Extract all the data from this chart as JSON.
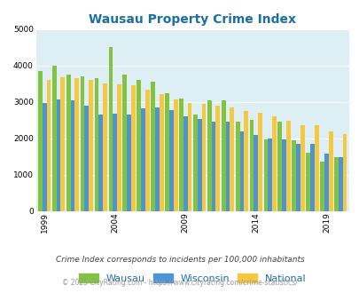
{
  "title": "Wausau Property Crime Index",
  "years": [
    1999,
    2000,
    2001,
    2002,
    2003,
    2004,
    2005,
    2006,
    2007,
    2008,
    2009,
    2010,
    2011,
    2012,
    2013,
    2014,
    2015,
    2016,
    2017,
    2018,
    2019,
    2020
  ],
  "wausau": [
    3850,
    4000,
    3750,
    3700,
    3650,
    4500,
    3750,
    3600,
    3550,
    3250,
    3100,
    2650,
    3050,
    3050,
    2450,
    2500,
    1980,
    2450,
    1950,
    1600,
    1360,
    1480
  ],
  "wisconsin": [
    2970,
    3080,
    3050,
    2900,
    2650,
    2670,
    2660,
    2830,
    2840,
    2780,
    2600,
    2520,
    2450,
    2450,
    2200,
    2090,
    1990,
    1960,
    1840,
    1840,
    1570,
    1490
  ],
  "national": [
    3610,
    3680,
    3660,
    3600,
    3520,
    3480,
    3450,
    3350,
    3220,
    3070,
    2970,
    2950,
    2900,
    2860,
    2750,
    2700,
    2610,
    2490,
    2360,
    2360,
    2200,
    2120
  ],
  "wausau_color": "#82c341",
  "wisconsin_color": "#4d94d5",
  "national_color": "#f5c842",
  "bg_color": "#ddeef5",
  "ylim": [
    0,
    5000
  ],
  "yticks": [
    0,
    1000,
    2000,
    3000,
    4000,
    5000
  ],
  "xtick_years": [
    1999,
    2004,
    2009,
    2014,
    2019
  ],
  "subtitle": "Crime Index corresponds to incidents per 100,000 inhabitants",
  "footer": "© 2025 CityRating.com - https://www.cityrating.com/crime-statistics/",
  "title_color": "#1a6fa0",
  "subtitle_color": "#444444",
  "footer_color": "#999999",
  "legend_labels": [
    "Wausau",
    "Wisconsin",
    "National"
  ],
  "legend_color": "#1a6fa0"
}
